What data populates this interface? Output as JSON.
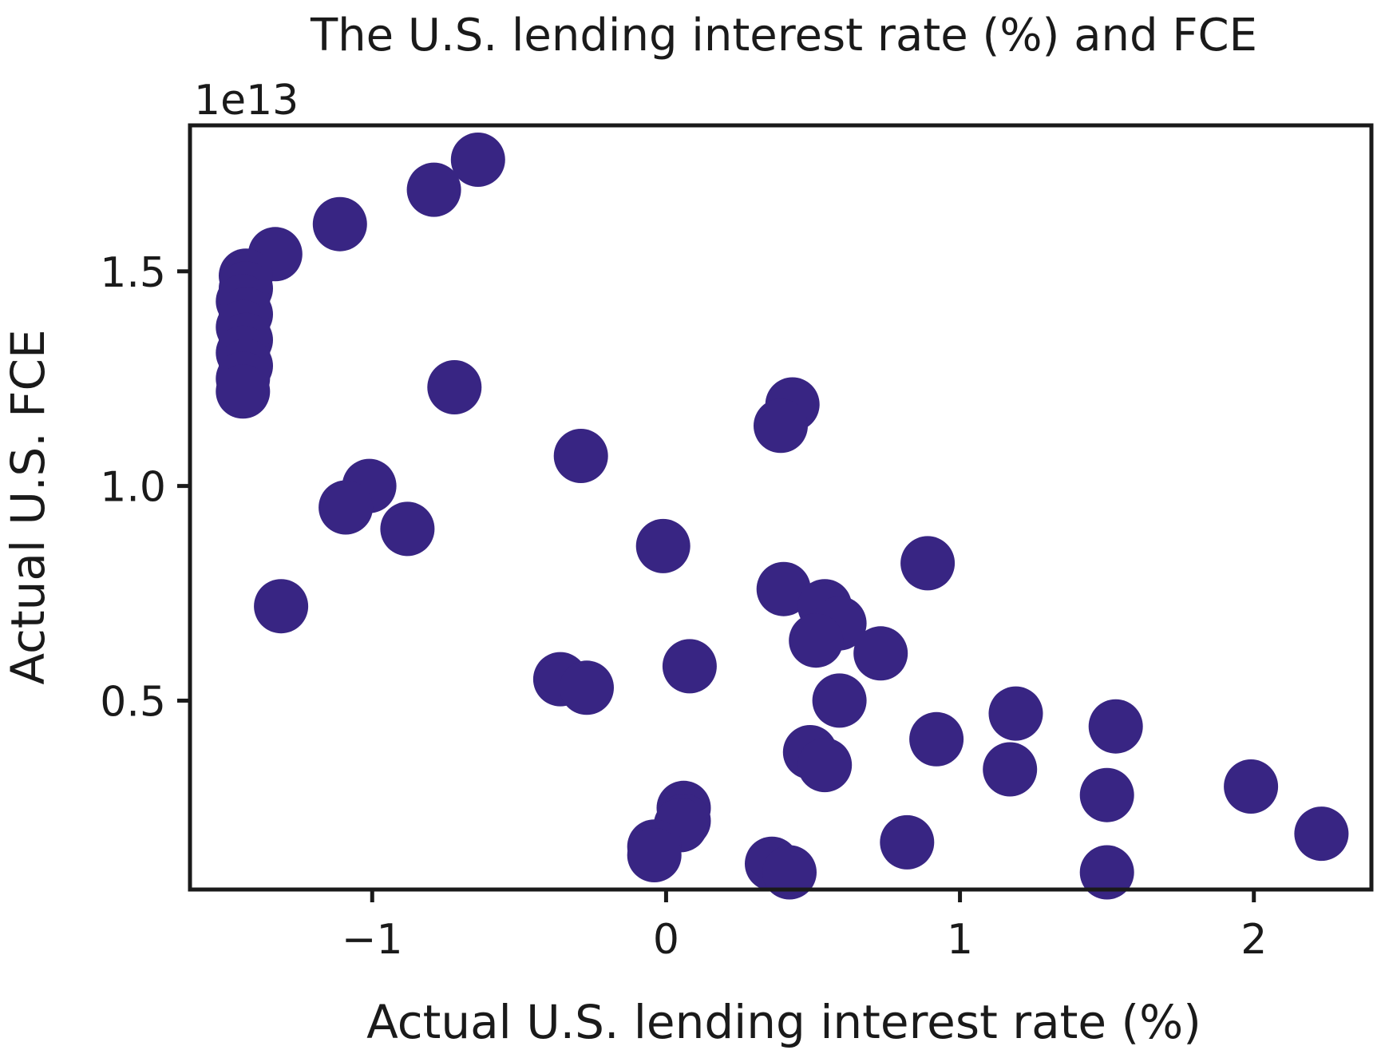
{
  "chart_data": {
    "type": "scatter",
    "title": "The U.S. lending interest rate (%) and FCE",
    "xlabel": "Actual U.S. lending interest rate (%)",
    "ylabel": "Actual U.S. FCE",
    "y_offset_label": "1e13",
    "xlim": [
      -1.62,
      2.4
    ],
    "ylim": [
      0.06,
      1.84
    ],
    "xticks": [
      -1,
      0,
      1,
      2
    ],
    "xtick_labels": [
      "−1",
      "0",
      "1",
      "2"
    ],
    "yticks": [
      0.5,
      1.0,
      1.5
    ],
    "ytick_labels": [
      "0.5",
      "1.0",
      "1.5"
    ],
    "marker_color": "#382583",
    "grid": false,
    "points": [
      {
        "x": -0.64,
        "y": 1.76
      },
      {
        "x": -0.79,
        "y": 1.69
      },
      {
        "x": -1.11,
        "y": 1.61
      },
      {
        "x": -1.33,
        "y": 1.54
      },
      {
        "x": -1.43,
        "y": 1.49
      },
      {
        "x": -1.43,
        "y": 1.46
      },
      {
        "x": -1.44,
        "y": 1.43
      },
      {
        "x": -1.43,
        "y": 1.4
      },
      {
        "x": -1.44,
        "y": 1.37
      },
      {
        "x": -1.43,
        "y": 1.34
      },
      {
        "x": -1.44,
        "y": 1.31
      },
      {
        "x": -1.43,
        "y": 1.28
      },
      {
        "x": -1.44,
        "y": 1.25
      },
      {
        "x": -1.44,
        "y": 1.22
      },
      {
        "x": -0.72,
        "y": 1.23
      },
      {
        "x": 0.43,
        "y": 1.19
      },
      {
        "x": 0.39,
        "y": 1.14
      },
      {
        "x": -0.29,
        "y": 1.07
      },
      {
        "x": -1.01,
        "y": 1.0
      },
      {
        "x": -1.09,
        "y": 0.95
      },
      {
        "x": -0.88,
        "y": 0.9
      },
      {
        "x": -0.01,
        "y": 0.86
      },
      {
        "x": 0.89,
        "y": 0.82
      },
      {
        "x": 0.4,
        "y": 0.76
      },
      {
        "x": 0.54,
        "y": 0.72
      },
      {
        "x": 0.59,
        "y": 0.68
      },
      {
        "x": 0.51,
        "y": 0.64
      },
      {
        "x": 0.73,
        "y": 0.61
      },
      {
        "x": -1.31,
        "y": 0.72
      },
      {
        "x": 0.08,
        "y": 0.58
      },
      {
        "x": -0.36,
        "y": 0.55
      },
      {
        "x": -0.27,
        "y": 0.53
      },
      {
        "x": 0.59,
        "y": 0.5
      },
      {
        "x": 1.19,
        "y": 0.47
      },
      {
        "x": 1.53,
        "y": 0.44
      },
      {
        "x": 0.92,
        "y": 0.41
      },
      {
        "x": 0.49,
        "y": 0.38
      },
      {
        "x": 0.54,
        "y": 0.35
      },
      {
        "x": 1.17,
        "y": 0.34
      },
      {
        "x": 1.5,
        "y": 0.28
      },
      {
        "x": 1.99,
        "y": 0.3
      },
      {
        "x": 0.06,
        "y": 0.25
      },
      {
        "x": 0.06,
        "y": 0.22
      },
      {
        "x": 0.05,
        "y": 0.21
      },
      {
        "x": -0.04,
        "y": 0.16
      },
      {
        "x": -0.04,
        "y": 0.14
      },
      {
        "x": 2.23,
        "y": 0.19
      },
      {
        "x": 0.82,
        "y": 0.17
      },
      {
        "x": 0.36,
        "y": 0.12
      },
      {
        "x": 0.42,
        "y": 0.1
      },
      {
        "x": 1.5,
        "y": 0.1
      }
    ]
  }
}
